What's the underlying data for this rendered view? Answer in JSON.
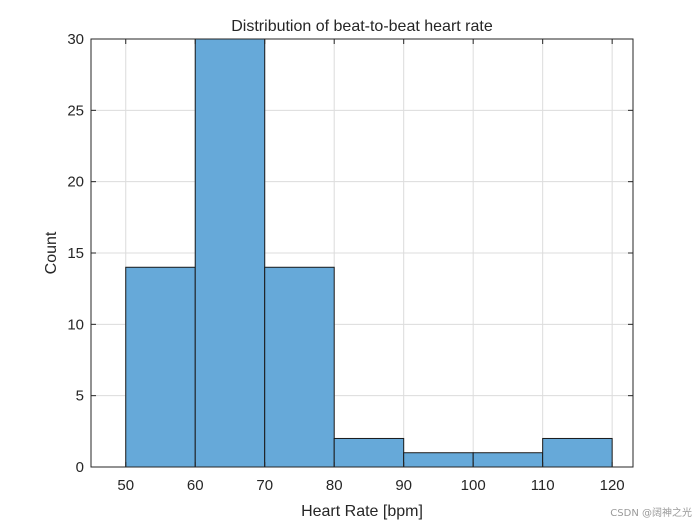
{
  "chart_data": {
    "type": "bar",
    "title": "Distribution of beat-to-beat heart rate",
    "xlabel": "Heart Rate [bpm]",
    "ylabel": "Count",
    "bin_edges": [
      50,
      60,
      70,
      80,
      90,
      100,
      110,
      120
    ],
    "values": [
      14,
      30,
      14,
      2,
      1,
      1,
      2
    ],
    "xlim": [
      45,
      123
    ],
    "ylim": [
      0,
      30
    ],
    "xticks": [
      50,
      60,
      70,
      80,
      90,
      100,
      110,
      120
    ],
    "yticks": [
      0,
      5,
      10,
      15,
      20,
      25,
      30
    ],
    "grid": true,
    "colors": {
      "bar_fill": "#66a9d9",
      "bar_edge": "#1a1a1a",
      "grid": "#dcdcdc",
      "axis": "#262626"
    }
  },
  "watermark": "CSDN @阔神之光"
}
